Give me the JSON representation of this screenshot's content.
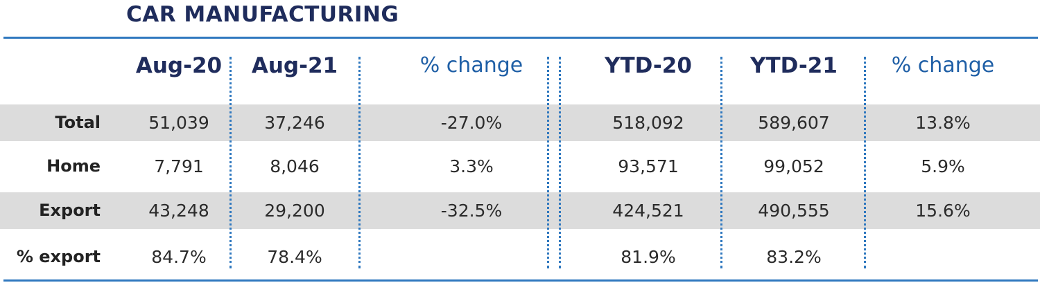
{
  "title": "CAR MANUFACTURING",
  "chart_data": {
    "type": "table",
    "columns": [
      "Aug-20",
      "Aug-21",
      "% change",
      "YTD-20",
      "YTD-21",
      "% change"
    ],
    "rows": [
      {
        "label": "Total",
        "values": [
          "51,039",
          "37,246",
          "-27.0%",
          "518,092",
          "589,607",
          "13.8%"
        ]
      },
      {
        "label": "Home",
        "values": [
          "7,791",
          "8,046",
          "3.3%",
          "93,571",
          "99,052",
          "5.9%"
        ]
      },
      {
        "label": "Export",
        "values": [
          "43,248",
          "29,200",
          "-32.5%",
          "424,521",
          "490,555",
          "15.6%"
        ]
      },
      {
        "label": "% export",
        "values": [
          "84.7%",
          "78.4%",
          "",
          "81.9%",
          "83.2%",
          ""
        ]
      }
    ]
  },
  "colors": {
    "title": "#1f2c5c",
    "rule": "#2f78bf",
    "band": "#dcdcdc",
    "light_header": "#1f5fa6"
  }
}
